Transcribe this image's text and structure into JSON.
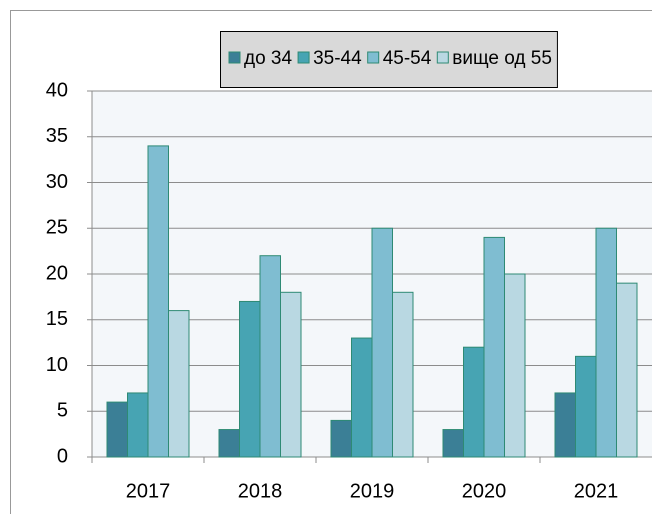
{
  "chart_data": {
    "type": "bar",
    "categories": [
      "2017",
      "2018",
      "2019",
      "2020",
      "2021"
    ],
    "series": [
      {
        "name": "до 34",
        "color": "#3b7f96",
        "values": [
          6,
          3,
          4,
          3,
          7
        ]
      },
      {
        "name": "35-44",
        "color": "#47a4b3",
        "values": [
          7,
          17,
          13,
          12,
          11
        ]
      },
      {
        "name": "45-54",
        "color": "#7fbdd1",
        "values": [
          34,
          22,
          25,
          24,
          25
        ]
      },
      {
        "name": "вище од 55",
        "color": "#b9d8e2",
        "values": [
          16,
          18,
          18,
          20,
          19
        ]
      }
    ],
    "ylim": [
      0,
      40
    ],
    "yticks": [
      0,
      5,
      10,
      15,
      20,
      25,
      30,
      35,
      40
    ],
    "grid": true,
    "legend": "top-right"
  }
}
